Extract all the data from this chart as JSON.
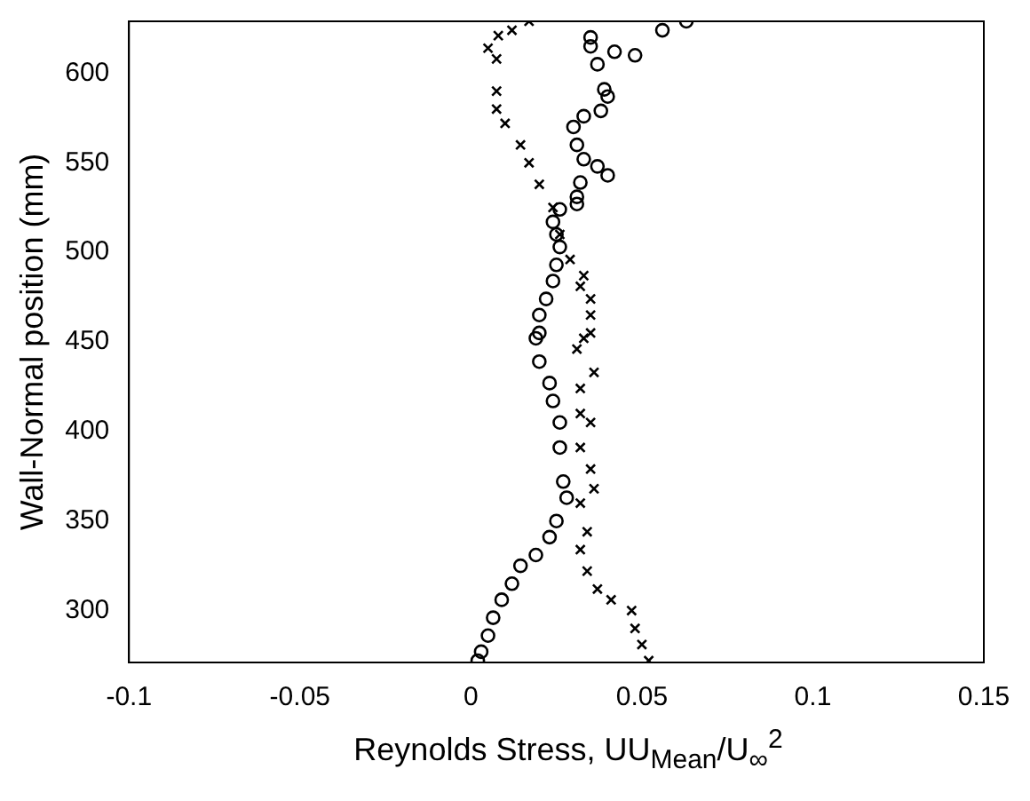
{
  "chart_data": {
    "type": "scatter",
    "xlabel": "Reynolds Stress, UU$_{Mean}$/U$_{∞}$$^{2}$",
    "ylabel": "Wall-Normal position (mm)",
    "xlim": [
      -0.1,
      0.15
    ],
    "xticks": [
      -0.1,
      -0.05,
      0,
      0.05,
      0.1,
      0.15
    ],
    "ylim": [
      271,
      629
    ],
    "yticks": [
      300,
      350,
      400,
      450,
      500,
      550,
      600
    ],
    "grid": false,
    "legend": false,
    "series": [
      {
        "color": "#000000",
        "marker": "cross",
        "x": [
          0.017,
          0.012,
          0.008,
          0.005,
          0.0075,
          0.0075,
          0.0075,
          0.01,
          0.0145,
          0.017,
          0.02,
          0.024,
          0.026,
          0.029,
          0.033,
          0.032,
          0.035,
          0.035,
          0.035,
          0.033,
          0.031,
          0.036,
          0.032,
          0.032,
          0.035,
          0.032,
          0.035,
          0.036,
          0.032,
          0.034,
          0.032,
          0.034,
          0.037,
          0.041,
          0.047,
          0.048,
          0.05,
          0.052
        ],
        "values": [
          629,
          624,
          621,
          614,
          608,
          590,
          580,
          572,
          560,
          550,
          538,
          525,
          510,
          496,
          487,
          481,
          474,
          465,
          455,
          452,
          446,
          433,
          424,
          410,
          405,
          391,
          379,
          368,
          360,
          344,
          334,
          322,
          312,
          306,
          300,
          290,
          281,
          272
        ]
      },
      {
        "color": "#000000",
        "marker": "circle",
        "x": [
          0.063,
          0.056,
          0.048,
          0.042,
          0.035,
          0.035,
          0.037,
          0.039,
          0.04,
          0.038,
          0.033,
          0.03,
          0.031,
          0.033,
          0.037,
          0.04,
          0.032,
          0.031,
          0.031,
          0.026,
          0.024,
          0.025,
          0.026,
          0.025,
          0.024,
          0.022,
          0.02,
          0.02,
          0.019,
          0.02,
          0.023,
          0.024,
          0.026,
          0.026,
          0.027,
          0.028,
          0.025,
          0.023,
          0.019,
          0.0145,
          0.012,
          0.009,
          0.0065,
          0.005,
          0.003,
          0.002
        ],
        "values": [
          629,
          624,
          610,
          612,
          620,
          615,
          605,
          591,
          587,
          579,
          576,
          570,
          560,
          552,
          548,
          543,
          539,
          531,
          527,
          524,
          517,
          510,
          503,
          493,
          484,
          474,
          465,
          455,
          452,
          439,
          427,
          417,
          405,
          391,
          372,
          363,
          350,
          341,
          331,
          325,
          315,
          306,
          296,
          286,
          277,
          272
        ]
      }
    ]
  }
}
